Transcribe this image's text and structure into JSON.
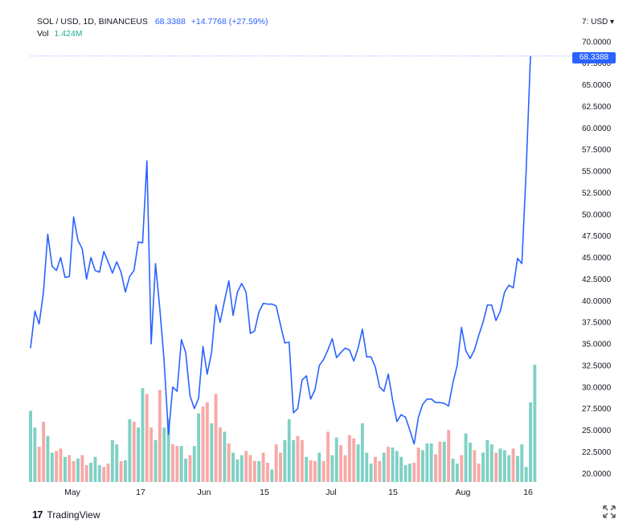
{
  "legend": {
    "symbol": "SOL / USD, 1D, BINANCEUS",
    "last": "68.3388",
    "change": "+14.7768 (+27.59%)",
    "vol_label": "Vol",
    "vol_value": "1.424M"
  },
  "price_axis": {
    "currency": "USD",
    "ticks": [
      "70.0000",
      "67.5000",
      "65.0000",
      "62.5000",
      "60.0000",
      "57.5000",
      "55.0000",
      "52.5000",
      "50.0000",
      "47.5000",
      "45.0000",
      "42.5000",
      "40.0000",
      "37.5000",
      "35.0000",
      "32.5000",
      "30.0000",
      "27.5000",
      "25.0000",
      "22.5000",
      "20.0000"
    ],
    "last_label": "68.3388"
  },
  "time_axis": {
    "labels": [
      "May",
      "17",
      "Jun",
      "15",
      "Jul",
      "15",
      "Aug",
      "16"
    ]
  },
  "brand": {
    "name": "TradingView"
  },
  "colors": {
    "line": "#2962ff",
    "vol_up": "#7fd1c4",
    "vol_down": "#f7a9a7",
    "grid_text": "#131722"
  },
  "chart_data": {
    "type": "line",
    "title": "SOL / USD, 1D, BINANCEUS",
    "ylim": [
      19,
      72.5
    ],
    "x_labels_at_index": {
      "May": 5,
      "17": 17,
      "Jun": 20,
      "15": 34,
      "Jul": 36,
      "15b": 50,
      "Aug": 56,
      "16": 69
    },
    "series": [
      {
        "name": "SOL / USD",
        "values": [
          34.5,
          38.8,
          37.3,
          41.0,
          47.7,
          44.0,
          43.5,
          45.0,
          42.7,
          42.8,
          49.7,
          47.0,
          46.0,
          42.5,
          45.0,
          43.5,
          43.3,
          45.7,
          44.5,
          43.2,
          44.5,
          43.3,
          41.0,
          42.8,
          43.5,
          46.8,
          46.7,
          56.2,
          35.0,
          44.3,
          39.0,
          33.0,
          24.5,
          30.0,
          29.5,
          35.5,
          34.0,
          29.0,
          27.5,
          28.7,
          34.7,
          31.5,
          34.0,
          39.5,
          37.5,
          40.0,
          42.3,
          38.3,
          41.0,
          42.0,
          41.0,
          36.2,
          36.5,
          38.7,
          39.7,
          39.6,
          39.6,
          39.4,
          37.2,
          35.1,
          35.2,
          27.0,
          27.5,
          30.8,
          31.3,
          28.6,
          29.7,
          32.5,
          33.2,
          34.3,
          35.6,
          33.4,
          34.0,
          34.5,
          34.3,
          33.0,
          34.5,
          36.7,
          33.5,
          33.5,
          32.3,
          30.0,
          29.5,
          31.5,
          28.5,
          26.0,
          26.8,
          26.5,
          25.0,
          23.4,
          26.5,
          28.0,
          28.6,
          28.6,
          28.2,
          28.2,
          28.1,
          27.8,
          30.5,
          32.5,
          36.9,
          34.2,
          33.3,
          34.3,
          36.0,
          37.5,
          39.5,
          39.5,
          37.7,
          38.8,
          41.0,
          41.8,
          41.5,
          44.9,
          44.3,
          55.0,
          68.3388
        ]
      },
      {
        "name": "Vol",
        "values": [
          8.5,
          6.5,
          4.2,
          7.2,
          5.5,
          3.5,
          3.7,
          4.0,
          3.0,
          3.2,
          2.5,
          2.8,
          3.2,
          2.0,
          2.3,
          3.0,
          2.0,
          1.8,
          2.2,
          5.0,
          4.5,
          2.5,
          2.6,
          7.5,
          7.2,
          6.5,
          11.2,
          10.5,
          6.5,
          5.0,
          11.0,
          6.5,
          7.5,
          4.5,
          4.3,
          4.3,
          2.8,
          3.2,
          4.3,
          8.2,
          9.0,
          9.5,
          7.0,
          10.5,
          6.5,
          6.0,
          4.6,
          3.5,
          2.7,
          3.2,
          3.7,
          3.2,
          2.5,
          2.5,
          3.5,
          2.3,
          1.5,
          4.5,
          3.5,
          5.0,
          7.5,
          5.0,
          5.5,
          5.0,
          3.0,
          2.6,
          2.5,
          3.5,
          2.5,
          6.0,
          3.2,
          5.3,
          4.4,
          3.2,
          5.6,
          5.2,
          4.5,
          7.0,
          3.5,
          2.2,
          3.0,
          2.5,
          3.5,
          4.2,
          4.1,
          3.7,
          3.0,
          2.0,
          2.2,
          2.3,
          4.1,
          3.8,
          4.6,
          4.6,
          3.3,
          4.8,
          4.8,
          6.2,
          2.8,
          2.2,
          3.2,
          5.8,
          4.7,
          3.8,
          2.2,
          3.5,
          5.0,
          4.5,
          3.5,
          4.0,
          3.8,
          3.2,
          4.0,
          3.1,
          4.5,
          1.8,
          9.5,
          14.0
        ],
        "up_down": "uudduudduddudduuudduuduuduudduduudduuduuddudduduuuddduddudduuudduddudduudddduuuudduduuuuudduuudduduuduudduuuduuuduuuuudduuuuuuuduu"
      }
    ],
    "xlabel": "",
    "ylabel": ""
  }
}
